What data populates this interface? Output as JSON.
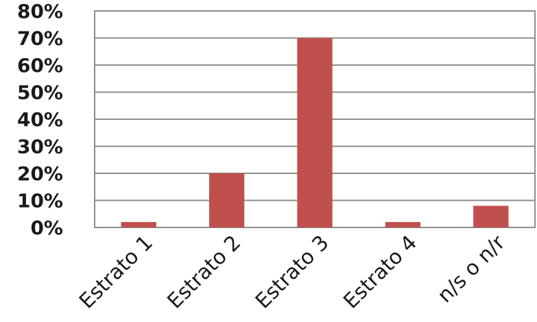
{
  "chart_data": {
    "type": "bar",
    "categories": [
      "Estrato 1",
      "Estrato 2",
      "Estrato 3",
      "Estrato 4",
      "n/s o n/r"
    ],
    "values": [
      0.02,
      0.2,
      0.7,
      0.02,
      0.08
    ],
    "ytick_labels": [
      "0%",
      "10%",
      "20%",
      "30%",
      "40%",
      "50%",
      "60%",
      "70%",
      "80%"
    ],
    "ylim": [
      0,
      0.8
    ],
    "grid": true,
    "legend": "none",
    "bar_color": "#c0504d"
  }
}
